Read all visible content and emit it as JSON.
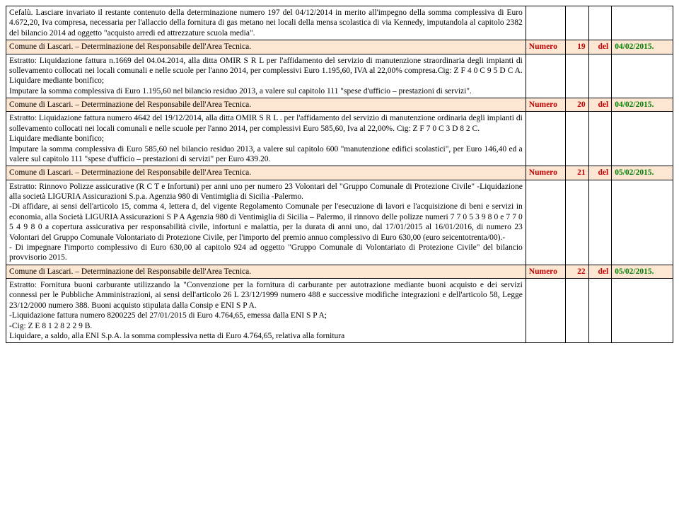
{
  "colors": {
    "header_bg": "#fde6d2",
    "red": "#c00000",
    "green": "#008000",
    "text": "#000000",
    "border": "#000000"
  },
  "font_family": "Times New Roman",
  "font_size_pt": 11.5,
  "rows": [
    {
      "type": "body",
      "text": "Cefalù. Lasciare invariato il restante contenuto della determinazione numero 197 del 04/12/2014 in merito all'impegno della somma complessiva di Euro 4.672,20, Iva compresa, necessaria per l'allaccio della fornitura di gas metano nei locali della mensa scolastica di via Kennedy, imputandola al capitolo 2382 del bilancio 2014 ad oggetto \"acquisto arredi ed attrezzature scuola media\"."
    },
    {
      "type": "header",
      "left": "Comune di Lascari.  – Determinazione del Responsabile dell'Area  Tecnica.",
      "numero_label": "Numero",
      "numero": "19",
      "del": "del",
      "date": "04/02/2015."
    },
    {
      "type": "body",
      "text": "Estratto: Liquidazione fattura n.1669 del 04.04.2014, alla ditta OMIR   S R L   per l'affidamento del servizio di manutenzione straordinaria degli impianti di sollevamento collocati nei locali comunali e nelle scuole per l'anno 2014, per complessivi Euro 1.195,60, IVA al 22,00% compresa.Cig: Z F 4 0 C 9 5 D C A. Liquidare mediante bonifico;\nImputare la somma complessiva di Euro 1.195,60 nel bilancio residuo 2013, a valere sul capitolo 111 \"spese d'ufficio – prestazioni di servizi\"."
    },
    {
      "type": "header",
      "left": "Comune di Lascari.  – Determinazione del Responsabile dell'Area  Tecnica.",
      "numero_label": "Numero",
      "numero": "20",
      "del": "del",
      "date": "04/02/2015."
    },
    {
      "type": "body",
      "text": "Estratto: Liquidazione fattura numero 4642 del 19/12/2014, alla ditta OMIR S R L . per l'affidamento del servizio di manutenzione ordinaria degli impianti di sollevamento collocati nei locali comunali e nelle scuole per l'anno 2014, per complessivi Euro 585,60, Iva al 22,00%. Cig: Z F 7 0 C 3 D 8 2 C.\nLiquidare mediante bonifico;\nImputare la somma complessiva di Euro 585,60 nel bilancio residuo 2013, a valere sul capitolo 600 \"manutenzione edifici scolastici\", per Euro 146,40 ed a valere sul capitolo 111 \"spese d'ufficio – prestazioni di servizi\" per Euro 439.20."
    },
    {
      "type": "header",
      "left": "Comune di Lascari.  – Determinazione del Responsabile dell'Area  Tecnica.",
      "numero_label": "Numero",
      "numero": "21",
      "del": "del",
      "date": "05/02/2015."
    },
    {
      "type": "body",
      "text": "Estratto: Rinnovo  Polizze assicurative (R C T e Infortuni) per anni uno per  numero 23  Volontari del \"Gruppo Comunale di Protezione Civile\" -Liquidazione   alla società LIGURIA Assicurazioni S.p.a. Agenzia 980 di Ventimiglia di Sicilia -Palermo.\n-Di affidare, ai sensi dell'articolo 15, comma 4, lettera d, del vigente Regolamento Comunale per l'esecuzione di lavori e l'acquisizione di beni e servizi in economia,  alla Società LIGURIA Assicurazioni S P A Agenzia 980 di Ventimiglia di Sicilia – Palermo, il rinnovo delle polizze numeri 7 7 0 5 3 9 8 0 e 7 7 0 5 4 9 8 0 a copertura assicurativa per responsabilità civile, infortuni e malattia, per la durata di anni uno, dal 17/01/2015 al 16/01/2016, di numero 23 Volontari del Gruppo Comunale Volontariato di Protezione Civile, per l'importo del premio annuo complessivo di Euro 630,00 (euro seicentotrenta/00).-\n - Di impegnare l'importo complessivo di Euro 630,00 al capitolo 924 ad oggetto \"Gruppo Comunale di Volontariato di Protezione Civile\"  del bilancio provvisorio 2015."
    },
    {
      "type": "header",
      "left": "Comune di Lascari.  – Determinazione del Responsabile dell'Area  Tecnica.",
      "numero_label": "Numero",
      "numero": "22",
      "del": "del",
      "date": "05/02/2015."
    },
    {
      "type": "body",
      "text": "Estratto: Fornitura buoni carburante utilizzando la \"Convenzione per la fornitura di carburante per autotrazione mediante buoni acquisto e dei servizi connessi per le Pubbliche Amministrazioni, ai sensi dell'articolo 26 L 23/12/1999 numero 488 e successive modifiche integrazioni e dell'articolo 58, Legge 23/12/2000 numero 388.  Buoni acquisto  stipulata dalla Consip e ENI S P A.\n-Liquidazione fattura numero 8200225 del 27/01/2015 di  Euro 4.764,65, emessa dalla ENI S P A;\n-Cig: Z E 8 1 2 8 2 2 9 B.\nLiquidare, a saldo, alla ENI S.p.A. la somma complessiva netta di Euro 4.764,65, relativa alla fornitura"
    }
  ]
}
